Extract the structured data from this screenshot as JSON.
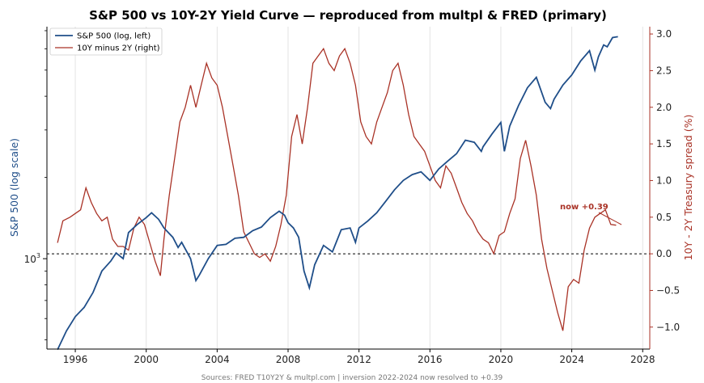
{
  "chart_data": {
    "type": "line",
    "title": "S&P 500 vs 10Y-2Y Yield Curve  —  reproduced from multpl & FRED (primary)",
    "xlabel": "",
    "ylabel_left": "S&P 500 (log scale)",
    "ylabel_right": "10Y - 2Y Treasury spread (%)",
    "x_ticks": [
      "1996",
      "2000",
      "2004",
      "2008",
      "2012",
      "2016",
      "2020",
      "2024",
      "2028"
    ],
    "x_range": [
      1994.4,
      2028.4
    ],
    "y_left_ticks": [
      {
        "base": "10",
        "exp": "3",
        "value": 1000
      }
    ],
    "y_right_ticks": [
      "3.0",
      "2.5",
      "2.0",
      "1.5",
      "1.0",
      "0.5",
      "0.0",
      "−0.5",
      "−1.0"
    ],
    "y_right_range": [
      -1.3,
      3.1
    ],
    "y_left_log_range": [
      2.665,
      3.86
    ],
    "legend": [
      {
        "label": "S&P 500 (log, left)",
        "color": "#1f4e89"
      },
      {
        "label": "10Y minus 2Y (right)",
        "color": "#a93226"
      }
    ],
    "legend_position": "top-left",
    "annotation": "now +0.39",
    "reference_line": {
      "axis": "right",
      "value": 0.0,
      "style": "dashed"
    },
    "grid": "vertical-only",
    "source_note": "Sources: FRED T10Y2Y & multpl.com  |  inversion 2022-2024 now resolved to +0.39",
    "series": [
      {
        "name": "S&P 500 (log, left)",
        "axis": "left",
        "color": "#1f4e89",
        "x": [
          1995.0,
          1995.5,
          1996.0,
          1996.5,
          1997.0,
          1997.5,
          1998.0,
          1998.3,
          1998.7,
          1999.0,
          1999.5,
          2000.0,
          2000.3,
          2000.7,
          2001.0,
          2001.5,
          2001.8,
          2002.0,
          2002.5,
          2002.8,
          2003.0,
          2003.5,
          2004.0,
          2004.5,
          2005.0,
          2005.5,
          2006.0,
          2006.5,
          2007.0,
          2007.5,
          2007.8,
          2008.0,
          2008.3,
          2008.6,
          2008.9,
          2009.2,
          2009.5,
          2010.0,
          2010.5,
          2011.0,
          2011.5,
          2011.8,
          2012.0,
          2012.5,
          2013.0,
          2013.5,
          2014.0,
          2014.5,
          2015.0,
          2015.5,
          2016.0,
          2016.5,
          2017.0,
          2017.5,
          2018.0,
          2018.5,
          2018.9,
          2019.0,
          2019.5,
          2020.0,
          2020.2,
          2020.5,
          2021.0,
          2021.5,
          2022.0,
          2022.5,
          2022.8,
          2023.0,
          2023.5,
          2024.0,
          2024.5,
          2025.0,
          2025.3,
          2025.5,
          2025.8,
          2026.0,
          2026.3,
          2026.6
        ],
        "values": [
          460,
          540,
          610,
          660,
          750,
          900,
          980,
          1050,
          1000,
          1250,
          1340,
          1420,
          1480,
          1400,
          1300,
          1200,
          1100,
          1150,
          1000,
          830,
          870,
          1000,
          1120,
          1130,
          1190,
          1200,
          1270,
          1310,
          1420,
          1500,
          1450,
          1360,
          1300,
          1200,
          900,
          780,
          950,
          1120,
          1060,
          1280,
          1300,
          1150,
          1300,
          1380,
          1480,
          1630,
          1800,
          1950,
          2050,
          2100,
          1950,
          2150,
          2300,
          2450,
          2750,
          2700,
          2500,
          2600,
          2900,
          3200,
          2500,
          3100,
          3700,
          4300,
          4700,
          3800,
          3600,
          3900,
          4400,
          4800,
          5400,
          5900,
          5000,
          5600,
          6200,
          6100,
          6600,
          6650
        ]
      },
      {
        "name": "10Y minus 2Y (right)",
        "axis": "right",
        "color": "#a93226",
        "x": [
          1995.0,
          1995.3,
          1995.7,
          1996.0,
          1996.3,
          1996.6,
          1996.9,
          1997.2,
          1997.5,
          1997.8,
          1998.1,
          1998.4,
          1998.7,
          1999.0,
          1999.3,
          1999.6,
          1999.9,
          2000.2,
          2000.5,
          2000.8,
          2001.0,
          2001.3,
          2001.6,
          2001.9,
          2002.2,
          2002.5,
          2002.8,
          2003.1,
          2003.4,
          2003.7,
          2004.0,
          2004.3,
          2004.6,
          2004.9,
          2005.2,
          2005.5,
          2005.8,
          2006.1,
          2006.4,
          2006.7,
          2007.0,
          2007.3,
          2007.6,
          2007.9,
          2008.2,
          2008.5,
          2008.8,
          2009.1,
          2009.4,
          2009.7,
          2010.0,
          2010.3,
          2010.6,
          2010.9,
          2011.2,
          2011.5,
          2011.8,
          2012.1,
          2012.4,
          2012.7,
          2013.0,
          2013.3,
          2013.6,
          2013.9,
          2014.2,
          2014.5,
          2014.8,
          2015.1,
          2015.4,
          2015.7,
          2016.0,
          2016.3,
          2016.6,
          2016.9,
          2017.2,
          2017.5,
          2017.8,
          2018.1,
          2018.4,
          2018.7,
          2019.0,
          2019.3,
          2019.6,
          2019.9,
          2020.2,
          2020.5,
          2020.8,
          2021.1,
          2021.4,
          2021.7,
          2022.0,
          2022.3,
          2022.6,
          2022.9,
          2023.2,
          2023.5,
          2023.8,
          2024.1,
          2024.4,
          2024.7,
          2025.0,
          2025.3,
          2025.6,
          2025.9,
          2026.2,
          2026.5
        ],
        "values": [
          0.15,
          0.45,
          0.5,
          0.55,
          0.6,
          0.9,
          0.7,
          0.55,
          0.45,
          0.5,
          0.2,
          0.1,
          0.1,
          0.05,
          0.35,
          0.5,
          0.4,
          0.15,
          -0.1,
          -0.3,
          0.2,
          0.8,
          1.3,
          1.8,
          2.0,
          2.3,
          2.0,
          2.3,
          2.6,
          2.4,
          2.3,
          2.0,
          1.6,
          1.2,
          0.8,
          0.3,
          0.15,
          0.0,
          -0.05,
          0.0,
          -0.1,
          0.1,
          0.4,
          0.8,
          1.6,
          1.9,
          1.5,
          2.0,
          2.6,
          2.7,
          2.8,
          2.6,
          2.5,
          2.7,
          2.8,
          2.6,
          2.3,
          1.8,
          1.6,
          1.5,
          1.8,
          2.0,
          2.2,
          2.5,
          2.6,
          2.3,
          1.9,
          1.6,
          1.5,
          1.4,
          1.2,
          1.0,
          0.9,
          1.2,
          1.1,
          0.9,
          0.7,
          0.55,
          0.45,
          0.3,
          0.2,
          0.15,
          0.0,
          0.25,
          0.3,
          0.55,
          0.75,
          1.3,
          1.55,
          1.2,
          0.8,
          0.2,
          -0.2,
          -0.5,
          -0.8,
          -1.05,
          -0.45,
          -0.35,
          -0.4,
          0.05,
          0.35,
          0.5,
          0.55,
          0.6,
          0.4,
          0.39
        ]
      }
    ]
  }
}
